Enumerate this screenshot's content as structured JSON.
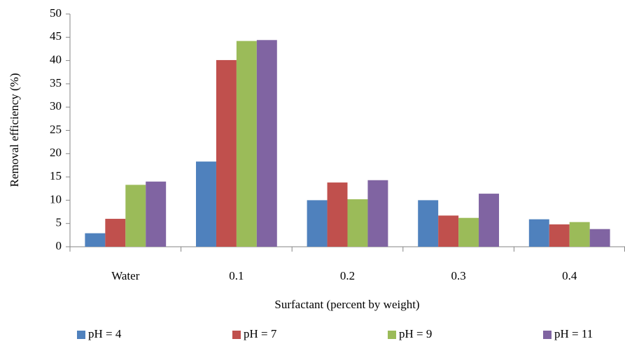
{
  "chart_data": {
    "type": "bar",
    "x_label": "Surfactant (percent by weight)",
    "y_label": "Removal efficiency (%)",
    "categories": [
      "Water",
      "0.1",
      "0.2",
      "0.3",
      "0.4"
    ],
    "series": [
      {
        "name": "pH = 4",
        "color": "#4f81bd",
        "values": [
          2.9,
          18.3,
          10,
          10,
          5.9
        ]
      },
      {
        "name": "pH = 7",
        "color": "#c0504d",
        "values": [
          6,
          40.1,
          13.8,
          6.7,
          4.8
        ]
      },
      {
        "name": "pH = 9",
        "color": "#9bbb59",
        "values": [
          13.3,
          44.2,
          10.2,
          6.2,
          5.3
        ]
      },
      {
        "name": "pH = 11",
        "color": "#8064a2",
        "values": [
          14,
          44.4,
          14.3,
          11.4,
          3.8
        ]
      }
    ],
    "ylim": [
      0,
      50
    ],
    "yticks": [
      0,
      5,
      10,
      15,
      20,
      25,
      30,
      35,
      40,
      45,
      50
    ],
    "grid": false,
    "legend": "bottom"
  }
}
